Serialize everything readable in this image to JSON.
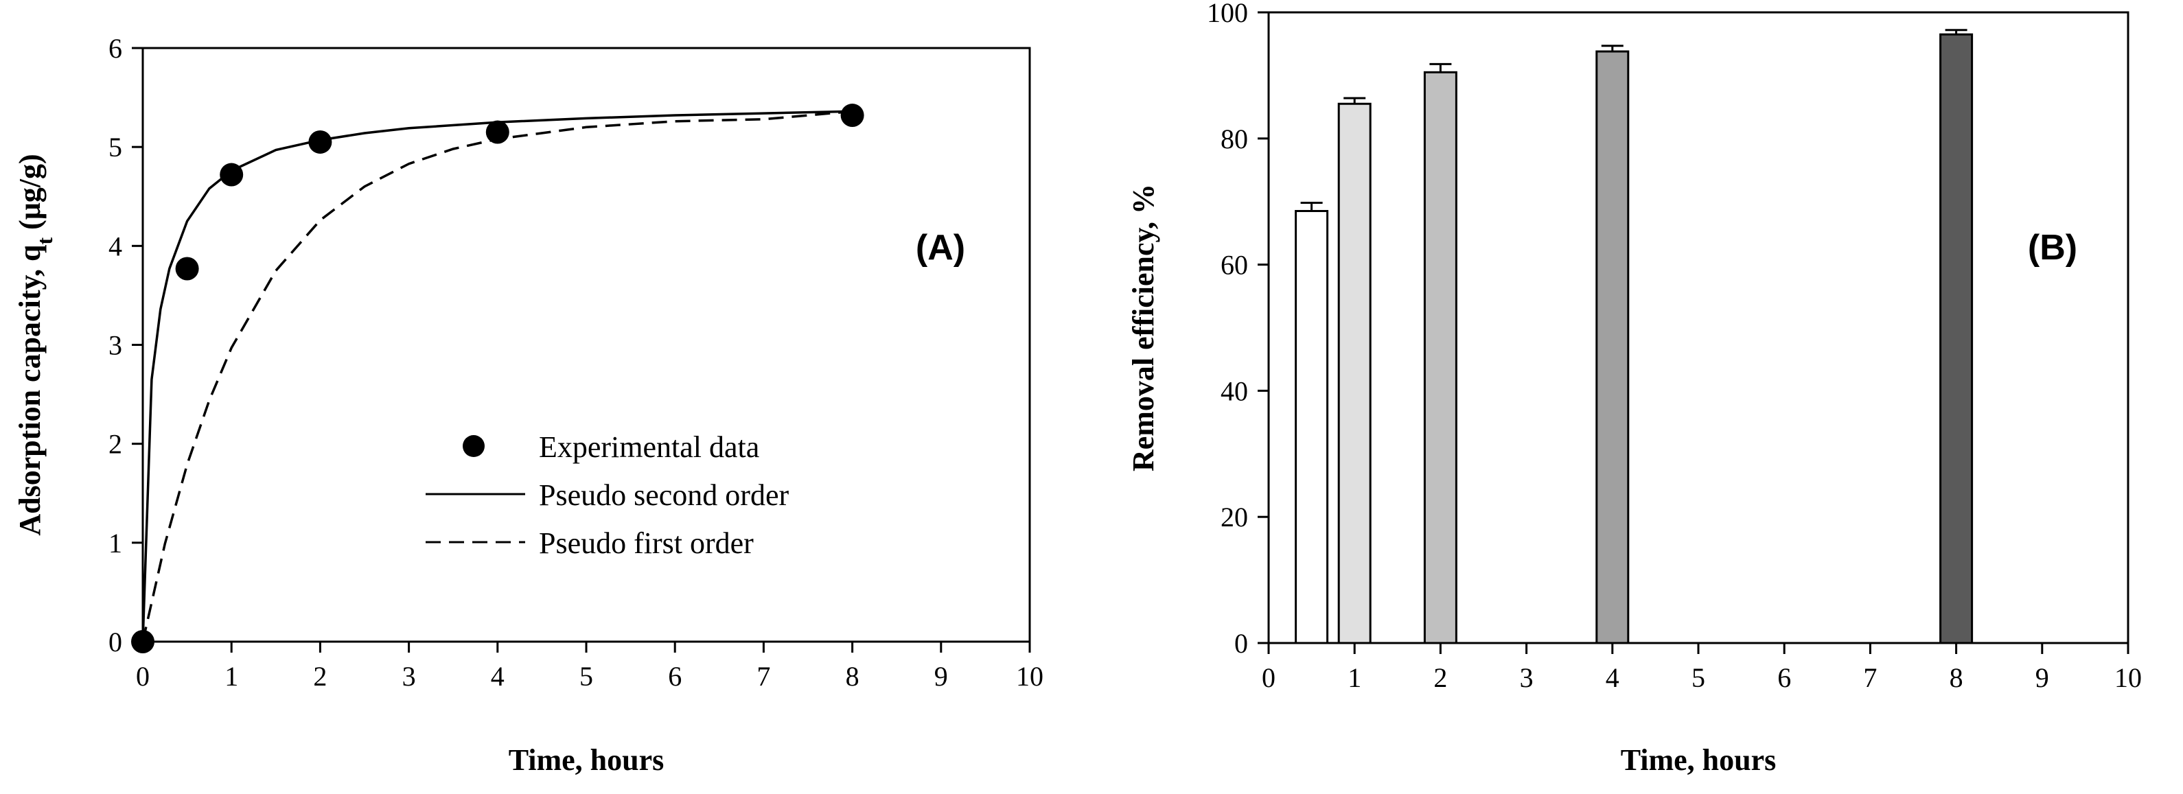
{
  "chart_data": [
    {
      "type": "scatter",
      "panel_label": "(A)",
      "xlabel": "Time, hours",
      "ylabel": "Adsorption capacity, q",
      "ylabel_sub": "t",
      "ylabel_unit": " (μg/g)",
      "xlim": [
        0,
        10
      ],
      "ylim": [
        0,
        6
      ],
      "x_ticks": [
        "0",
        "1",
        "2",
        "3",
        "4",
        "5",
        "6",
        "7",
        "8",
        "9",
        "10"
      ],
      "y_ticks": [
        "0",
        "1",
        "2",
        "3",
        "4",
        "5",
        "6"
      ],
      "grid": false,
      "legend_position": "lower-right",
      "series": [
        {
          "name": "Experimental data",
          "style": "markers",
          "x": [
            0,
            0.5,
            1,
            2,
            4,
            8
          ],
          "y": [
            0,
            3.77,
            4.72,
            5.05,
            5.15,
            5.32
          ]
        },
        {
          "name": "Pseudo second order",
          "style": "solid-line",
          "x": [
            0,
            0.1,
            0.2,
            0.3,
            0.5,
            0.75,
            1,
            1.5,
            2,
            2.5,
            3,
            4,
            5,
            6,
            7,
            8
          ],
          "y": [
            0,
            2.65,
            3.36,
            3.77,
            4.25,
            4.58,
            4.76,
            4.97,
            5.07,
            5.14,
            5.19,
            5.25,
            5.29,
            5.32,
            5.34,
            5.36
          ]
        },
        {
          "name": "Pseudo first order",
          "style": "dashed-line",
          "x": [
            0,
            0.25,
            0.5,
            0.75,
            1,
            1.5,
            2,
            2.5,
            3,
            3.5,
            4,
            5,
            6,
            7,
            8
          ],
          "y": [
            0,
            0.99,
            1.79,
            2.44,
            2.97,
            3.75,
            4.26,
            4.6,
            4.83,
            4.98,
            5.08,
            5.2,
            5.26,
            5.28,
            5.36
          ]
        }
      ]
    },
    {
      "type": "bar",
      "panel_label": "(B)",
      "xlabel": "Time, hours",
      "ylabel": "Removal efficiency, %",
      "xlim": [
        0,
        10
      ],
      "ylim": [
        0,
        100
      ],
      "x_ticks": [
        "0",
        "1",
        "2",
        "3",
        "4",
        "5",
        "6",
        "7",
        "8",
        "9",
        "10"
      ],
      "y_ticks": [
        "0",
        "20",
        "40",
        "60",
        "80",
        "100"
      ],
      "grid": false,
      "bars": [
        {
          "x": 0.5,
          "value": 68.5,
          "error": 1.3,
          "color": "#ffffff"
        },
        {
          "x": 1,
          "value": 85.5,
          "error": 0.9,
          "color": "#e0e0e0"
        },
        {
          "x": 2,
          "value": 90.5,
          "error": 1.3,
          "color": "#c0c0c0"
        },
        {
          "x": 4,
          "value": 93.8,
          "error": 0.9,
          "color": "#a0a0a0"
        },
        {
          "x": 8,
          "value": 96.5,
          "error": 0.7,
          "color": "#5a5a5a"
        }
      ]
    }
  ]
}
